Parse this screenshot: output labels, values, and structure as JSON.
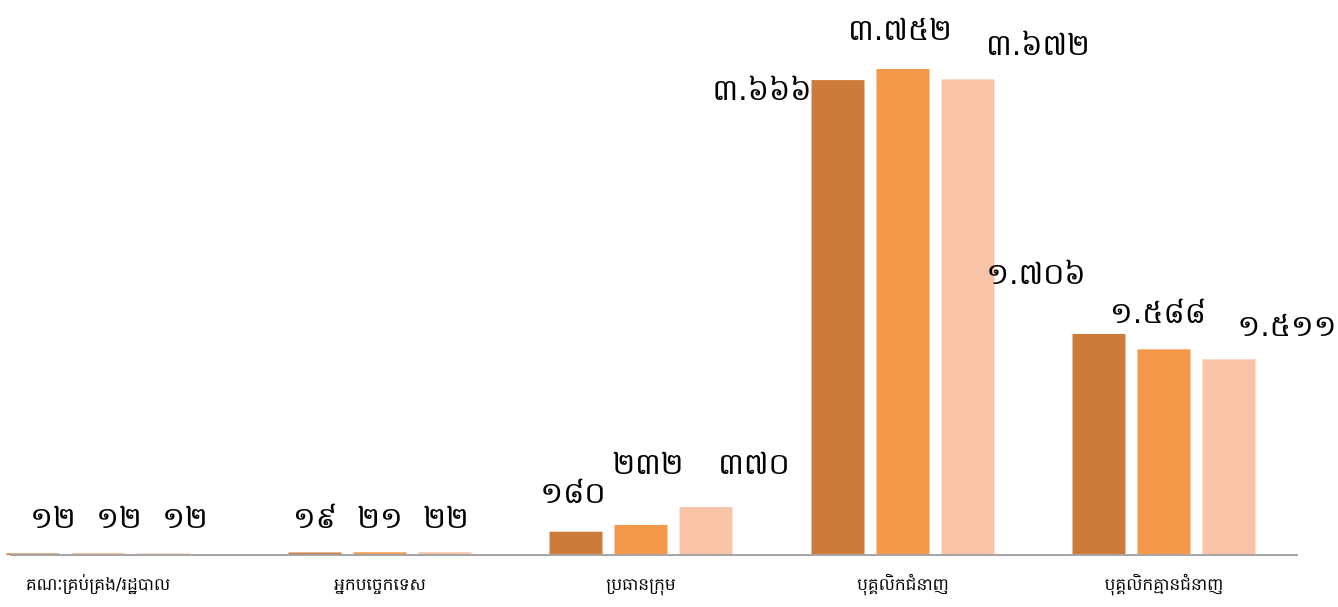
{
  "chart_data": {
    "type": "bar",
    "categories": [
      "គណៈគ្រប់គ្រង/រដ្ឋបាល",
      "អ្នកបច្ចេកទេស",
      "ប្រធានក្រុម",
      "បុគ្គលិកជំនាញ",
      "បុគ្គលិកគ្មានជំនាញ"
    ],
    "series": [
      {
        "values": [
          12,
          19,
          180,
          3666,
          1706
        ],
        "color": "#CD7B3A",
        "labels": [
          "១២",
          "១៩",
          "១៨០",
          "៣.៦៦៦",
          "១.៧០៦"
        ]
      },
      {
        "values": [
          12,
          21,
          232,
          3752,
          1588
        ],
        "color": "#F4994A",
        "labels": [
          "១២",
          "២១",
          "២៣២",
          "៣.៧៥២",
          "១.៥៨៨"
        ]
      },
      {
        "values": [
          12,
          22,
          370,
          3672,
          1511
        ],
        "color": "#F9C3A8",
        "labels": [
          "១២",
          "២២",
          "៣៧០",
          "៣.៦៧២",
          "១.៥១១"
        ]
      }
    ],
    "title": "",
    "xlabel": "",
    "ylabel": "",
    "ylim": [
      0,
      3752
    ],
    "grid": false,
    "legend": "none",
    "axis_color": "#A6A6A6"
  }
}
